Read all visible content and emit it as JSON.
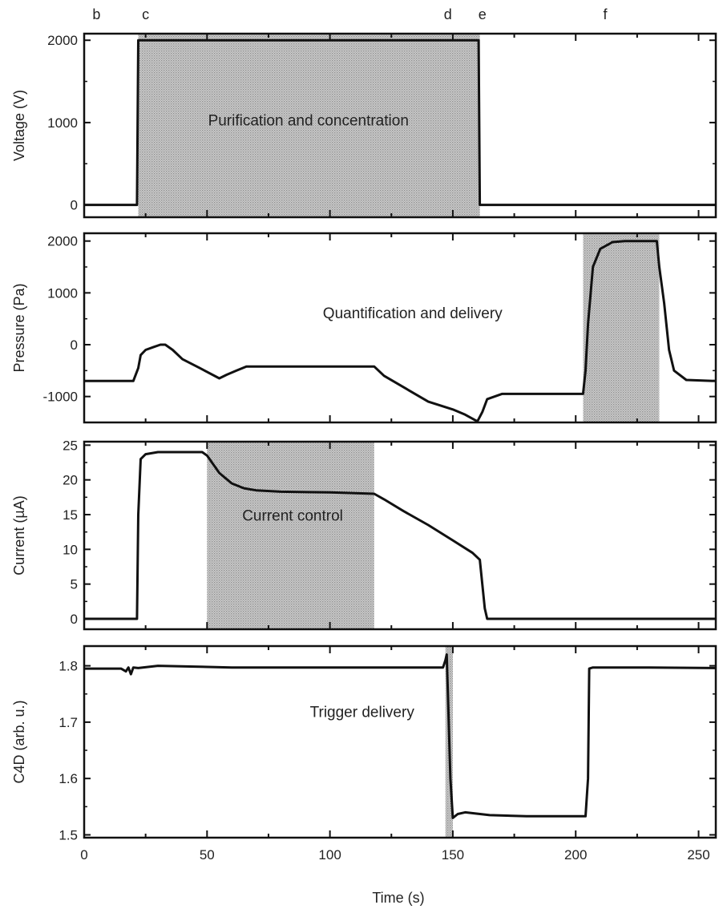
{
  "chart_data": [
    {
      "type": "line",
      "ylabel": "Voltage (V)",
      "xlim": [
        0,
        257
      ],
      "ylim": [
        -150,
        2080
      ],
      "yticks": [
        0,
        1000,
        2000
      ],
      "region": {
        "x": [
          22,
          161
        ],
        "label": "Purification and concentration"
      },
      "series": [
        {
          "x": [
            0,
            21.5,
            22,
            160.5,
            161,
            257
          ],
          "y": [
            0,
            0,
            2000,
            2000,
            0,
            0
          ]
        }
      ]
    },
    {
      "type": "line",
      "ylabel": "Pressure (Pa)",
      "xlim": [
        0,
        257
      ],
      "ylim": [
        -1500,
        2150
      ],
      "yticks": [
        -1000,
        0,
        1000,
        2000
      ],
      "region": {
        "x": [
          203,
          234
        ],
        "label": "Quantification and delivery"
      },
      "series": [
        {
          "x": [
            0,
            20,
            22,
            23,
            25,
            28,
            31,
            33,
            36,
            40,
            47,
            55,
            58,
            62,
            66,
            75,
            100,
            118,
            122,
            140,
            150,
            155,
            160,
            162,
            164,
            170,
            190,
            200,
            203,
            204,
            205,
            207,
            210,
            215,
            220,
            233,
            234,
            236,
            238,
            240,
            245,
            257
          ],
          "y": [
            -700,
            -700,
            -450,
            -200,
            -100,
            -50,
            0,
            0,
            -100,
            -280,
            -450,
            -650,
            -580,
            -500,
            -420,
            -420,
            -420,
            -420,
            -600,
            -1100,
            -1250,
            -1350,
            -1480,
            -1300,
            -1050,
            -950,
            -950,
            -950,
            -950,
            -500,
            400,
            1500,
            1850,
            1980,
            2000,
            2000,
            1500,
            800,
            -100,
            -500,
            -680,
            -700
          ]
        }
      ]
    },
    {
      "type": "line",
      "ylabel": "Current (µA)",
      "xlim": [
        0,
        257
      ],
      "ylim": [
        -1.5,
        25.5
      ],
      "yticks": [
        0,
        5,
        10,
        15,
        20,
        25
      ],
      "region": {
        "x": [
          50,
          118
        ],
        "label": "Current control"
      },
      "series": [
        {
          "x": [
            0,
            21.5,
            22,
            23,
            25,
            30,
            40,
            48,
            50,
            55,
            60,
            65,
            70,
            80,
            100,
            118,
            122,
            130,
            140,
            150,
            158,
            161,
            162,
            163,
            164,
            170,
            257
          ],
          "y": [
            0,
            0,
            15,
            23,
            23.7,
            24,
            24,
            24,
            23.5,
            21,
            19.5,
            18.8,
            18.5,
            18.3,
            18.2,
            18,
            17.2,
            15.5,
            13.5,
            11.3,
            9.5,
            8.5,
            5,
            1.5,
            0,
            0,
            0
          ]
        }
      ]
    },
    {
      "type": "line",
      "ylabel": "C4D (arb. u.)",
      "xlabel": "Time (s)",
      "xlim": [
        0,
        257
      ],
      "ylim": [
        1.495,
        1.835
      ],
      "xticks": [
        0,
        50,
        100,
        150,
        200,
        250
      ],
      "yticks": [
        1.5,
        1.6,
        1.7,
        1.8
      ],
      "region": {
        "x": [
          147,
          150
        ],
        "label": "Trigger delivery"
      },
      "series": [
        {
          "x": [
            0,
            15,
            17,
            18,
            19,
            20,
            22,
            30,
            60,
            100,
            130,
            146,
            147,
            147.5,
            148,
            149,
            150,
            152,
            155,
            165,
            180,
            204,
            205,
            205.5,
            207,
            230,
            257
          ],
          "y": [
            1.795,
            1.795,
            1.79,
            1.797,
            1.785,
            1.797,
            1.796,
            1.8,
            1.797,
            1.797,
            1.797,
            1.797,
            1.81,
            1.82,
            1.75,
            1.6,
            1.53,
            1.537,
            1.54,
            1.535,
            1.533,
            1.533,
            1.6,
            1.795,
            1.797,
            1.797,
            1.796
          ]
        }
      ]
    }
  ],
  "phase_marks": [
    {
      "label": "b",
      "x": 5
    },
    {
      "label": "c",
      "x": 25
    },
    {
      "label": "d",
      "x": 148
    },
    {
      "label": "e",
      "x": 162
    },
    {
      "label": "f",
      "x": 212
    }
  ]
}
